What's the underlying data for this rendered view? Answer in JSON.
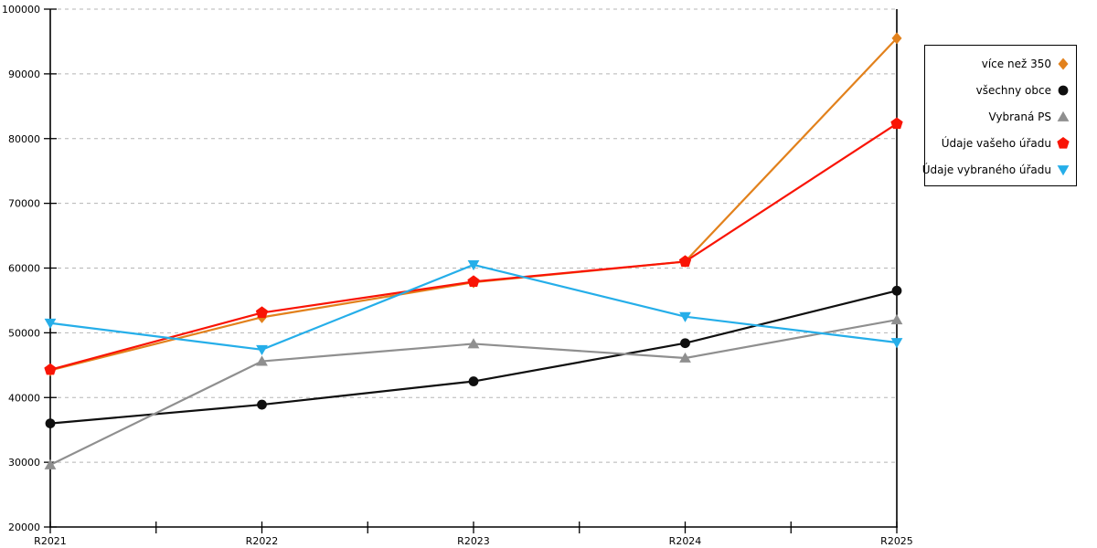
{
  "chart_data": {
    "type": "line",
    "title": "",
    "xlabel": "",
    "ylabel": "",
    "categories": [
      "R2021",
      "R2022",
      "R2023",
      "R2024",
      "R2025"
    ],
    "series": [
      {
        "name": "více než 350",
        "color": "#E2811C",
        "marker": "diamond",
        "values": [
          44200,
          52400,
          57800,
          61000,
          95500
        ]
      },
      {
        "name": "všechny obce",
        "color": "#0F0F0F",
        "marker": "circle",
        "values": [
          36000,
          38900,
          42500,
          48400,
          56500
        ]
      },
      {
        "name": "Vybraná PS",
        "color": "#8F8F8F",
        "marker": "triangle-up",
        "values": [
          29600,
          45600,
          48300,
          46100,
          52000
        ]
      },
      {
        "name": "Údaje vašeho úřadu",
        "color": "#F91405",
        "marker": "pentagon",
        "values": [
          44300,
          53100,
          57900,
          61000,
          82300
        ]
      },
      {
        "name": "Údaje vybraného úřadu",
        "color": "#25AEE9",
        "marker": "triangle-down",
        "values": [
          51500,
          47400,
          60500,
          52500,
          48500
        ]
      }
    ],
    "ylim": [
      20000,
      100000
    ],
    "y_ticks": [
      20000,
      30000,
      40000,
      50000,
      60000,
      70000,
      80000,
      90000,
      100000
    ],
    "y_tick_labels": [
      "20000",
      "30000",
      "40000",
      "50000",
      "60000",
      "70000",
      "80000",
      "90000",
      "100000"
    ],
    "grid": "horizontal dashed gridlines at each major y tick",
    "gridline_color": "#B5B5B5",
    "axis_color": "#000000",
    "x_minor_ticks": "midpoints between categories",
    "legend_position": "right outside plot"
  }
}
